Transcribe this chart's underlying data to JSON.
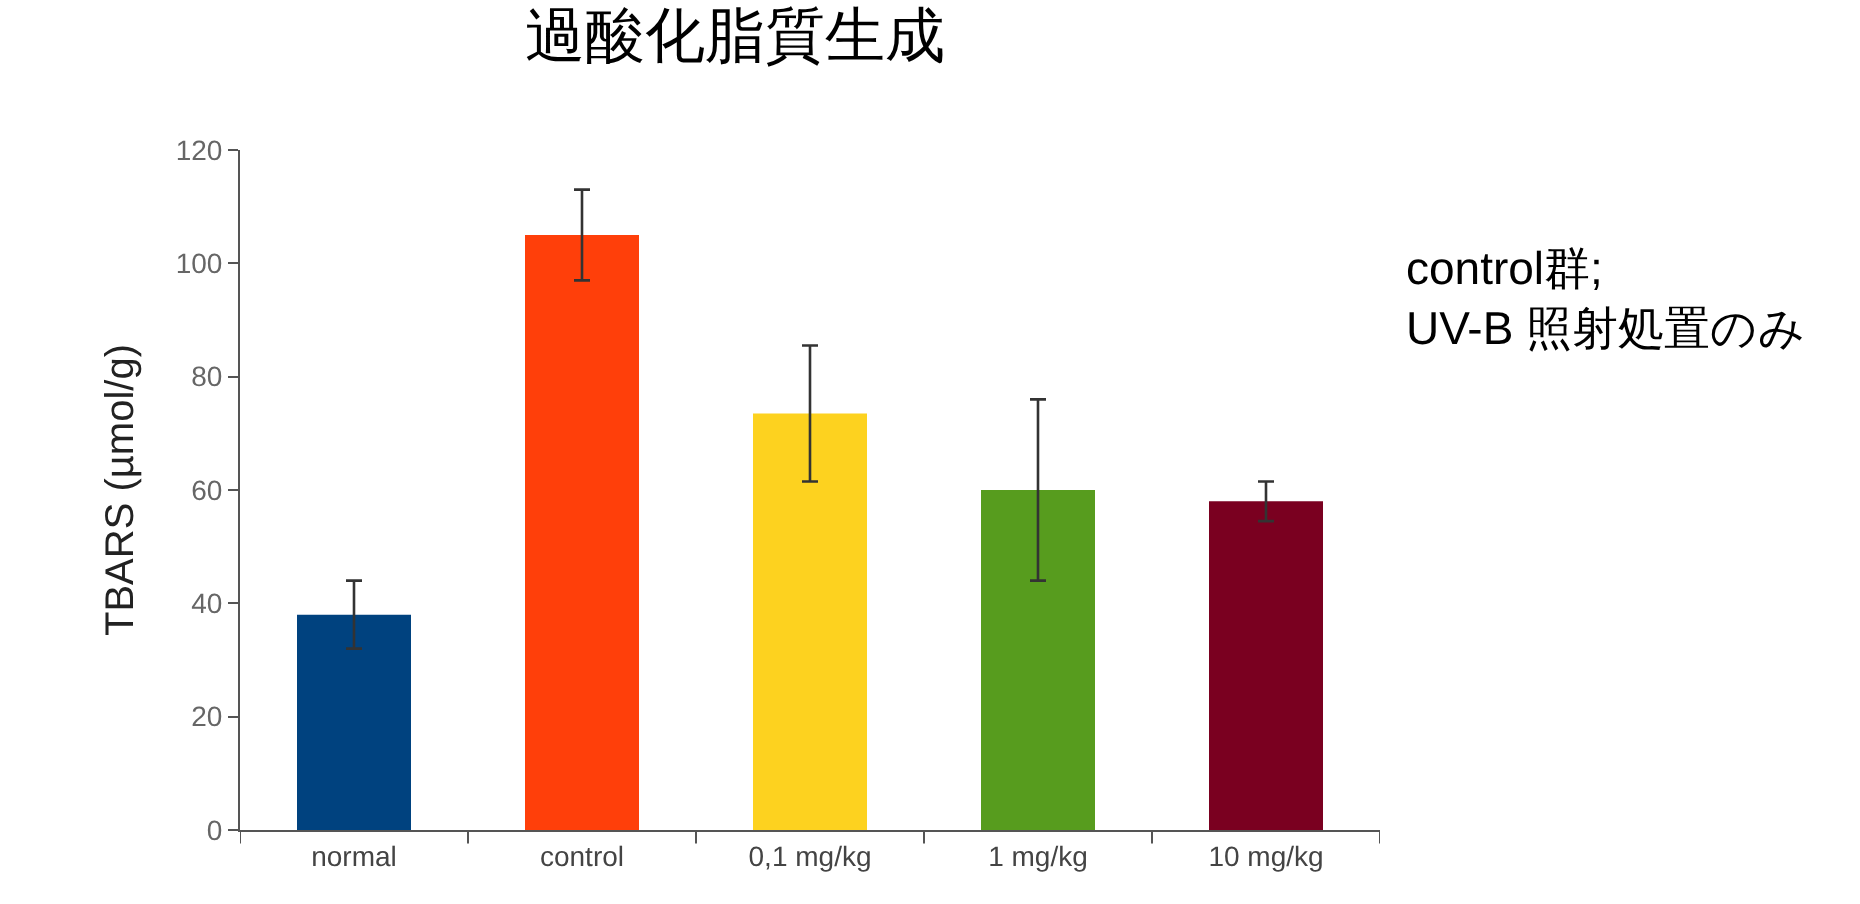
{
  "chart_data": {
    "type": "bar",
    "title": "過酸化脂質生成",
    "ylabel": "TBARS (µmol/g)",
    "categories": [
      "normal",
      "control",
      "0,1 mg/kg",
      "1 mg/kg",
      "10 mg/kg"
    ],
    "values": [
      38,
      105,
      73.5,
      60,
      58
    ],
    "errors": [
      6,
      8,
      12,
      16,
      3.5
    ],
    "colors": [
      "#00427f",
      "#ff3f0a",
      "#fdd21f",
      "#579c1e",
      "#7a0020"
    ],
    "ylim": [
      0,
      120
    ],
    "yticks": [
      0,
      20,
      40,
      60,
      80,
      100,
      120
    ],
    "annotations": [
      "control群;\nUV-B 照射処置のみ"
    ]
  }
}
